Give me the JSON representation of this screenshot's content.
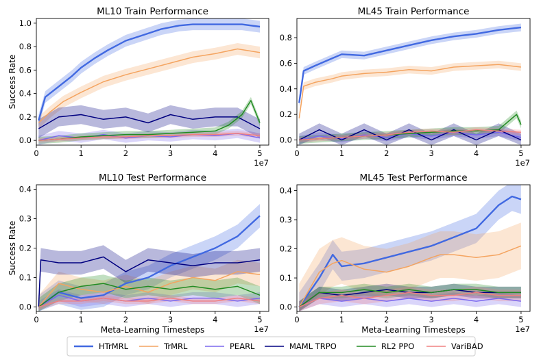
{
  "legend": {
    "position": "bottom-center",
    "entries": [
      {
        "name": "HTrMRL",
        "color": "#4169e1"
      },
      {
        "name": "TrMRL",
        "color": "#f4a460"
      },
      {
        "name": "PEARL",
        "color": "#7b68ee"
      },
      {
        "name": "MAML TRPO",
        "color": "#000080"
      },
      {
        "name": "RL2 PPO",
        "color": "#228b22"
      },
      {
        "name": "VariBAD",
        "color": "#f08080"
      }
    ]
  },
  "chart_data": [
    {
      "type": "line",
      "title": "ML10 Train Performance",
      "xlabel": "",
      "ylabel": "Success Rate",
      "x_exponent_label": "1e7",
      "xlim": [
        0,
        5.2
      ],
      "ylim": [
        -0.04,
        1.04
      ],
      "xticks": [
        0,
        1,
        2,
        3,
        4,
        5
      ],
      "yticks": [
        0.0,
        0.2,
        0.4,
        0.6,
        0.8,
        1.0
      ],
      "ytick_labels": [
        "0.0",
        "0.2",
        "0.4",
        "0.6",
        "0.8",
        "1.0"
      ],
      "grid": false,
      "series": [
        {
          "name": "HTrMRL",
          "band": 0.05,
          "x": [
            0.05,
            0.2,
            0.5,
            0.8,
            1.0,
            1.3,
            1.6,
            2.0,
            2.4,
            2.8,
            3.2,
            3.5,
            3.8,
            4.2,
            4.6,
            5.0
          ],
          "y": [
            0.17,
            0.37,
            0.46,
            0.55,
            0.62,
            0.7,
            0.77,
            0.85,
            0.9,
            0.95,
            0.98,
            0.99,
            0.99,
            0.99,
            0.99,
            0.97
          ]
        },
        {
          "name": "TrMRL",
          "band": 0.05,
          "x": [
            0.05,
            0.3,
            0.6,
            1.0,
            1.5,
            2.0,
            2.5,
            3.0,
            3.5,
            4.0,
            4.5,
            5.0
          ],
          "y": [
            0.15,
            0.24,
            0.33,
            0.41,
            0.5,
            0.56,
            0.61,
            0.66,
            0.71,
            0.74,
            0.78,
            0.75
          ]
        },
        {
          "name": "PEARL",
          "band": 0.04,
          "x": [
            0.05,
            0.5,
            1.0,
            1.5,
            2.0,
            2.5,
            3.0,
            3.5,
            4.0,
            4.5,
            5.0
          ],
          "y": [
            0.0,
            0.04,
            0.02,
            0.05,
            0.02,
            0.04,
            0.03,
            0.05,
            0.04,
            0.06,
            0.02
          ]
        },
        {
          "name": "MAML TRPO",
          "band": 0.08,
          "x": [
            0.05,
            0.5,
            1.0,
            1.5,
            2.0,
            2.5,
            3.0,
            3.5,
            4.0,
            4.5,
            5.0
          ],
          "y": [
            0.1,
            0.2,
            0.22,
            0.18,
            0.2,
            0.15,
            0.22,
            0.18,
            0.2,
            0.2,
            0.1
          ]
        },
        {
          "name": "RL2 PPO",
          "band": 0.03,
          "x": [
            0.05,
            0.5,
            1.0,
            1.5,
            2.0,
            2.5,
            3.0,
            3.5,
            4.0,
            4.3,
            4.6,
            4.8,
            5.0
          ],
          "y": [
            0.0,
            0.01,
            0.03,
            0.04,
            0.05,
            0.05,
            0.06,
            0.07,
            0.08,
            0.13,
            0.22,
            0.34,
            0.15
          ]
        },
        {
          "name": "VariBAD",
          "band": 0.02,
          "x": [
            0.05,
            0.5,
            1.0,
            1.5,
            2.0,
            2.5,
            3.0,
            3.5,
            4.0,
            4.5,
            5.0
          ],
          "y": [
            0.0,
            0.01,
            0.02,
            0.03,
            0.03,
            0.04,
            0.04,
            0.05,
            0.05,
            0.06,
            0.04
          ]
        }
      ]
    },
    {
      "type": "line",
      "title": "ML45 Train Performance",
      "xlabel": "",
      "ylabel": "",
      "x_exponent_label": "1e7",
      "xlim": [
        0,
        5.2
      ],
      "ylim": [
        -0.04,
        0.95
      ],
      "xticks": [
        0,
        1,
        2,
        3,
        4,
        5
      ],
      "yticks": [
        0.0,
        0.2,
        0.4,
        0.6,
        0.8
      ],
      "ytick_labels": [
        "0.0",
        "0.2",
        "0.4",
        "0.6",
        "0.8"
      ],
      "grid": false,
      "series": [
        {
          "name": "HTrMRL",
          "band": 0.03,
          "x": [
            0.05,
            0.15,
            0.4,
            0.8,
            1.0,
            1.5,
            2.0,
            2.5,
            3.0,
            3.5,
            4.0,
            4.5,
            5.0
          ],
          "y": [
            0.29,
            0.54,
            0.58,
            0.64,
            0.67,
            0.66,
            0.7,
            0.74,
            0.78,
            0.81,
            0.83,
            0.86,
            0.88
          ]
        },
        {
          "name": "TrMRL",
          "band": 0.03,
          "x": [
            0.05,
            0.15,
            0.4,
            0.8,
            1.0,
            1.5,
            2.0,
            2.5,
            3.0,
            3.5,
            4.0,
            4.5,
            5.0
          ],
          "y": [
            0.17,
            0.42,
            0.45,
            0.48,
            0.5,
            0.52,
            0.53,
            0.55,
            0.54,
            0.57,
            0.58,
            0.59,
            0.57
          ]
        },
        {
          "name": "PEARL",
          "band": 0.03,
          "x": [
            0.05,
            0.5,
            1.0,
            1.5,
            2.0,
            2.5,
            3.0,
            3.5,
            4.0,
            4.5,
            5.0
          ],
          "y": [
            0.0,
            0.03,
            0.01,
            0.04,
            0.02,
            0.05,
            0.03,
            0.06,
            0.04,
            0.06,
            0.02
          ]
        },
        {
          "name": "MAML TRPO",
          "band": 0.05,
          "x": [
            0.05,
            0.5,
            1.0,
            1.5,
            2.0,
            2.5,
            3.0,
            3.5,
            4.0,
            4.5,
            5.0
          ],
          "y": [
            0.0,
            0.08,
            0.0,
            0.08,
            0.0,
            0.08,
            0.0,
            0.08,
            0.0,
            0.08,
            0.0
          ]
        },
        {
          "name": "RL2 PPO",
          "band": 0.03,
          "x": [
            0.05,
            0.5,
            1.0,
            1.5,
            2.0,
            2.5,
            3.0,
            3.5,
            4.0,
            4.5,
            4.9,
            5.0
          ],
          "y": [
            0.0,
            0.01,
            0.02,
            0.03,
            0.04,
            0.05,
            0.06,
            0.07,
            0.07,
            0.08,
            0.2,
            0.12
          ]
        },
        {
          "name": "VariBAD",
          "band": 0.02,
          "x": [
            0.05,
            0.5,
            1.0,
            1.5,
            2.0,
            2.5,
            3.0,
            3.5,
            4.0,
            4.5,
            5.0
          ],
          "y": [
            0.0,
            0.01,
            0.02,
            0.03,
            0.04,
            0.06,
            0.07,
            0.06,
            0.08,
            0.07,
            0.06
          ]
        }
      ]
    },
    {
      "type": "line",
      "title": "ML10 Test Performance",
      "xlabel": "Meta-Learning Timesteps",
      "ylabel": "Success Rate",
      "x_exponent_label": "1e7",
      "xlim": [
        0,
        5.2
      ],
      "ylim": [
        -0.015,
        0.415
      ],
      "xticks": [
        0,
        1,
        2,
        3,
        4,
        5
      ],
      "yticks": [
        0.0,
        0.1,
        0.2,
        0.3,
        0.4
      ],
      "ytick_labels": [
        "0.0",
        "0.1",
        "0.2",
        "0.3",
        "0.4"
      ],
      "grid": false,
      "series": [
        {
          "name": "HTrMRL",
          "band": 0.04,
          "x": [
            0.05,
            0.5,
            1.0,
            1.5,
            2.0,
            2.5,
            3.0,
            3.5,
            4.0,
            4.5,
            5.0
          ],
          "y": [
            0.0,
            0.05,
            0.03,
            0.04,
            0.08,
            0.1,
            0.14,
            0.17,
            0.2,
            0.24,
            0.31
          ]
        },
        {
          "name": "TrMRL",
          "band": 0.04,
          "x": [
            0.05,
            0.5,
            1.0,
            1.5,
            2.0,
            2.5,
            3.0,
            3.5,
            4.0,
            4.5,
            5.0
          ],
          "y": [
            0.0,
            0.08,
            0.06,
            0.05,
            0.07,
            0.05,
            0.08,
            0.1,
            0.09,
            0.12,
            0.11
          ]
        },
        {
          "name": "PEARL",
          "band": 0.02,
          "x": [
            0.05,
            0.5,
            1.0,
            1.5,
            2.0,
            2.5,
            3.0,
            3.5,
            4.0,
            4.5,
            5.0
          ],
          "y": [
            0.0,
            0.04,
            0.02,
            0.03,
            0.02,
            0.03,
            0.02,
            0.03,
            0.03,
            0.02,
            0.03
          ]
        },
        {
          "name": "MAML TRPO",
          "band": 0.04,
          "x": [
            0.05,
            0.1,
            0.5,
            1.0,
            1.5,
            2.0,
            2.5,
            3.0,
            3.5,
            4.0,
            4.5,
            5.0
          ],
          "y": [
            0.0,
            0.16,
            0.15,
            0.15,
            0.17,
            0.12,
            0.16,
            0.15,
            0.14,
            0.15,
            0.15,
            0.16
          ]
        },
        {
          "name": "RL2 PPO",
          "band": 0.03,
          "x": [
            0.05,
            0.5,
            1.0,
            1.5,
            2.0,
            2.5,
            3.0,
            3.5,
            4.0,
            4.5,
            5.0
          ],
          "y": [
            0.0,
            0.05,
            0.07,
            0.08,
            0.06,
            0.07,
            0.06,
            0.07,
            0.06,
            0.07,
            0.04
          ]
        },
        {
          "name": "VariBAD",
          "band": 0.01,
          "x": [
            0.05,
            0.5,
            1.0,
            1.5,
            2.0,
            2.5,
            3.0,
            3.5,
            4.0,
            4.5,
            5.0
          ],
          "y": [
            0.0,
            0.02,
            0.02,
            0.03,
            0.02,
            0.02,
            0.03,
            0.02,
            0.02,
            0.03,
            0.02
          ]
        }
      ]
    },
    {
      "type": "line",
      "title": "ML45 Test Performance",
      "xlabel": "Meta-Learning Timesteps",
      "ylabel": "",
      "x_exponent_label": "1e7",
      "xlim": [
        0,
        5.2
      ],
      "ylim": [
        -0.015,
        0.42
      ],
      "xticks": [
        0,
        1,
        2,
        3,
        4,
        5
      ],
      "yticks": [
        0.0,
        0.1,
        0.2,
        0.3,
        0.4
      ],
      "ytick_labels": [
        "0.0",
        "0.1",
        "0.2",
        "0.3",
        "0.4"
      ],
      "grid": false,
      "series": [
        {
          "name": "HTrMRL",
          "band": 0.05,
          "x": [
            0.05,
            0.5,
            0.8,
            1.0,
            1.5,
            2.0,
            2.5,
            3.0,
            3.5,
            4.0,
            4.5,
            4.8,
            5.0
          ],
          "y": [
            0.0,
            0.1,
            0.18,
            0.14,
            0.15,
            0.17,
            0.19,
            0.21,
            0.24,
            0.27,
            0.35,
            0.38,
            0.37
          ]
        },
        {
          "name": "TrMRL",
          "band": 0.08,
          "x": [
            0.05,
            0.5,
            0.8,
            1.0,
            1.5,
            2.0,
            2.5,
            3.0,
            3.2,
            3.5,
            4.0,
            4.5,
            5.0
          ],
          "y": [
            0.0,
            0.12,
            0.15,
            0.16,
            0.13,
            0.12,
            0.14,
            0.17,
            0.18,
            0.18,
            0.17,
            0.18,
            0.21
          ]
        },
        {
          "name": "PEARL",
          "band": 0.02,
          "x": [
            0.05,
            0.5,
            1.0,
            1.5,
            2.0,
            2.5,
            3.0,
            3.5,
            4.0,
            4.5,
            5.0
          ],
          "y": [
            0.0,
            0.03,
            0.02,
            0.03,
            0.02,
            0.03,
            0.02,
            0.03,
            0.02,
            0.03,
            0.02
          ]
        },
        {
          "name": "MAML TRPO",
          "band": 0.02,
          "x": [
            0.05,
            0.5,
            1.0,
            1.5,
            2.0,
            2.5,
            3.0,
            3.5,
            4.0,
            4.5,
            5.0
          ],
          "y": [
            0.0,
            0.05,
            0.04,
            0.05,
            0.06,
            0.05,
            0.05,
            0.06,
            0.05,
            0.05,
            0.05
          ]
        },
        {
          "name": "RL2 PPO",
          "band": 0.02,
          "x": [
            0.05,
            0.5,
            1.0,
            1.5,
            2.0,
            2.5,
            3.0,
            3.5,
            4.0,
            4.5,
            5.0
          ],
          "y": [
            0.0,
            0.05,
            0.05,
            0.06,
            0.05,
            0.06,
            0.05,
            0.06,
            0.06,
            0.05,
            0.05
          ]
        },
        {
          "name": "VariBAD",
          "band": 0.02,
          "x": [
            0.05,
            0.5,
            1.0,
            1.5,
            2.0,
            2.5,
            3.0,
            3.5,
            4.0,
            4.5,
            5.0
          ],
          "y": [
            0.0,
            0.03,
            0.04,
            0.03,
            0.04,
            0.05,
            0.04,
            0.04,
            0.05,
            0.04,
            0.04
          ]
        }
      ]
    }
  ]
}
